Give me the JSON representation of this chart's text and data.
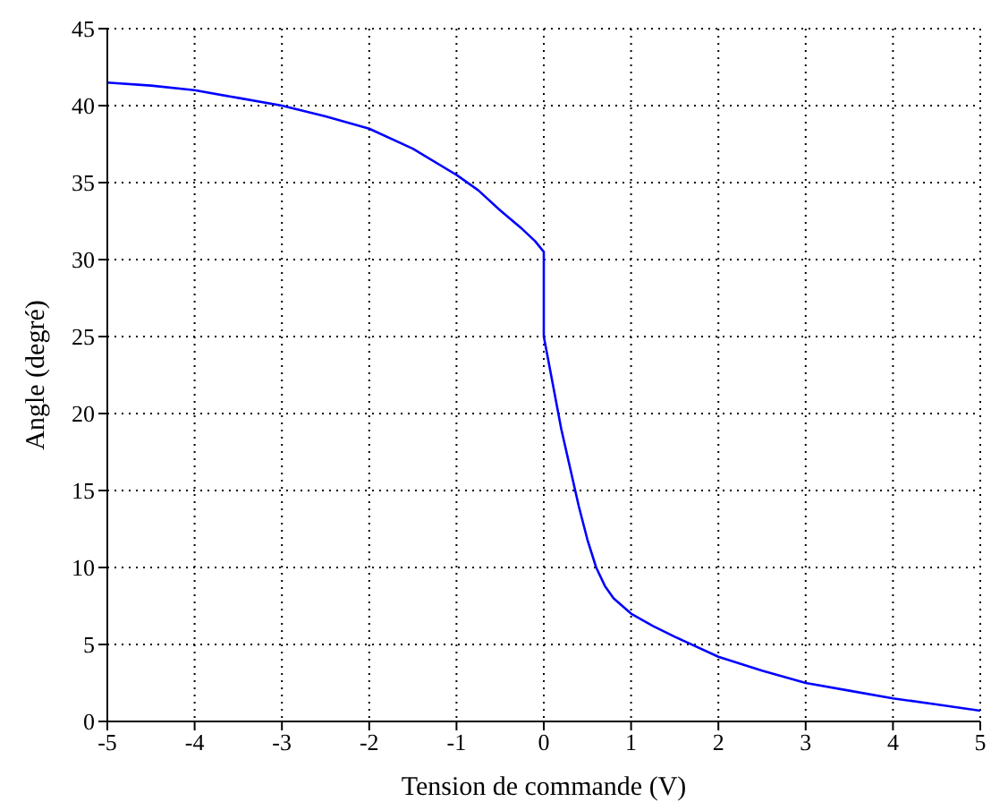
{
  "chart_data": {
    "type": "line",
    "xlabel": "Tension de commande (V)",
    "ylabel": "Angle (degré)",
    "x": [
      -5,
      -4.5,
      -4,
      -3.5,
      -3,
      -2.5,
      -2,
      -1.5,
      -1,
      -0.75,
      -0.5,
      -0.25,
      -0.1,
      0,
      0,
      0.1,
      0.2,
      0.3,
      0.4,
      0.5,
      0.6,
      0.7,
      0.8,
      1,
      1.25,
      1.5,
      2,
      2.5,
      3,
      3.5,
      4,
      4.5,
      5
    ],
    "series": [
      {
        "color": "#0000ff",
        "values": [
          41.5,
          41.3,
          41,
          40.5,
          40,
          39.3,
          38.5,
          37.2,
          35.5,
          34.5,
          33.2,
          32,
          31.2,
          30.5,
          25,
          22,
          19,
          16.5,
          14,
          11.8,
          10,
          8.8,
          8,
          7,
          6.2,
          5.5,
          4.2,
          3.3,
          2.5,
          2,
          1.5,
          1.1,
          0.7
        ]
      }
    ],
    "xlim": [
      -5,
      5
    ],
    "xticks": [
      -5,
      -4,
      -3,
      -2,
      -1,
      0,
      1,
      2,
      3,
      4,
      5
    ],
    "ylim": [
      0,
      45
    ],
    "yticks": [
      0,
      5,
      10,
      15,
      20,
      25,
      30,
      35,
      40,
      45
    ],
    "grid": true,
    "legend": false,
    "marker": "none",
    "line_style": "solid"
  }
}
